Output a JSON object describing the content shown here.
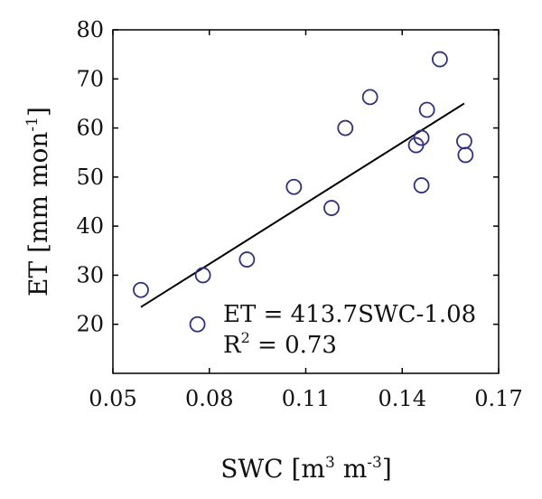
{
  "chart_data": {
    "type": "scatter",
    "xlabel": "SWC [m3 m-3]",
    "ylabel": "ET [mm mon-1]",
    "xlim": [
      0.05,
      0.17
    ],
    "ylim": [
      10,
      80
    ],
    "x_ticks": [
      0.05,
      0.08,
      0.11,
      0.14,
      0.17
    ],
    "x_tick_labels": [
      "0.05",
      "0.08",
      "0.11",
      "0.14",
      "0.17"
    ],
    "y_ticks": [
      20,
      30,
      40,
      50,
      60,
      70,
      80
    ],
    "y_tick_labels": [
      "20",
      "30",
      "40",
      "50",
      "60",
      "70",
      "80"
    ],
    "grid": false,
    "marker_color": "#2e2e8c",
    "line_color": "#000000",
    "series": [
      {
        "values": [
          {
            "x": 0.0587,
            "y": 27.0
          },
          {
            "x": 0.0763,
            "y": 20.0
          },
          {
            "x": 0.078,
            "y": 30.0
          },
          {
            "x": 0.0917,
            "y": 33.2
          },
          {
            "x": 0.1063,
            "y": 48.0
          },
          {
            "x": 0.118,
            "y": 43.7
          },
          {
            "x": 0.1223,
            "y": 60.0
          },
          {
            "x": 0.13,
            "y": 66.3
          },
          {
            "x": 0.1443,
            "y": 56.5
          },
          {
            "x": 0.146,
            "y": 48.3
          },
          {
            "x": 0.146,
            "y": 58.0
          },
          {
            "x": 0.1477,
            "y": 63.7
          },
          {
            "x": 0.1517,
            "y": 74.0
          },
          {
            "x": 0.1593,
            "y": 57.3
          },
          {
            "x": 0.1597,
            "y": 54.5
          }
        ]
      }
    ],
    "fit_line": {
      "x_start": 0.0587,
      "x_end": 0.1593,
      "y_start": 23.5,
      "y_end": 65.0
    },
    "annotation": {
      "equation": "ET = 413.7SWC-1.08",
      "r2_label": "R",
      "r2_sup": "2",
      "r2_value": " = 0.73"
    },
    "xlabel_parts": {
      "main": "SWC [m",
      "sup1": "3",
      "mid": " m",
      "sup2": "-3",
      "end": "]"
    },
    "ylabel_parts": {
      "main": "ET [mm mon",
      "sup": "-1",
      "end": "]"
    }
  }
}
